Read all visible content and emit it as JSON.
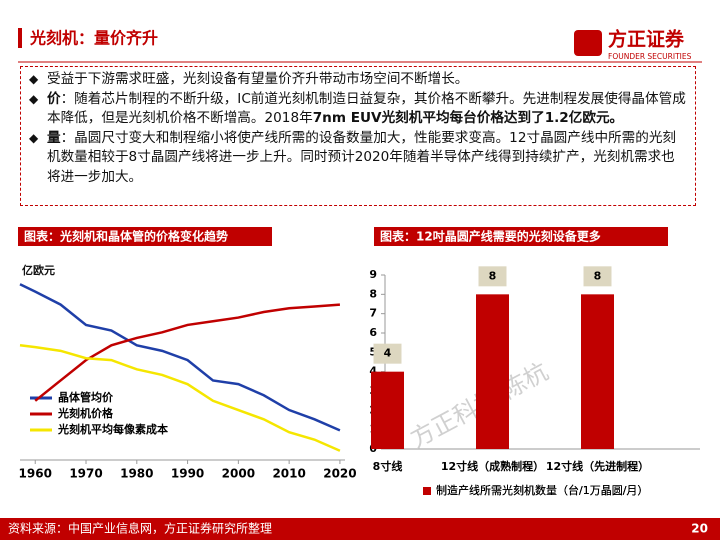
{
  "header": {
    "title": "光刻机：量价齐升",
    "logo": "方正证券",
    "logo_sub": "FOUNDER SECURITIES"
  },
  "bullets": [
    [
      {
        "text": "受益于下游需求旺盛，光刻设备有望量价齐升带动市场空间不断增长。",
        "bold": false
      }
    ],
    [
      {
        "text": "价",
        "bold": true
      },
      {
        "text": "：随着芯片制程的不断升级，IC前道光刻机制造日益复杂，其价格不断攀升。先进制程发展使得晶体管成本降低，但是光刻机价格不断增高。2018年",
        "bold": false
      },
      {
        "text": "7nm EUV光刻机平均每台价格达到了1.2亿欧元。",
        "bold": true
      }
    ],
    [
      {
        "text": "量",
        "bold": true
      },
      {
        "text": "：晶圆尺寸变大和制程缩小将使产线所需的设备数量加大，性能要求变高。12寸晶圆产线中所需的光刻机数量相较于8寸晶圆产线将进一步上升。同时预计2020年随着半导体产线得到持续扩产，光刻机需求也将进一步加大。",
        "bold": false
      }
    ]
  ],
  "chart_data": [
    {
      "type": "line",
      "title": "图表：光刻机和晶体管的价格变化趋势",
      "y_label": "亿欧元",
      "x": [
        1957,
        1960,
        1965,
        1970,
        1975,
        1980,
        1985,
        1990,
        1995,
        2000,
        2005,
        2010,
        2015,
        2020
      ],
      "xlim": [
        1957,
        2021
      ],
      "xticks": [
        1960,
        1970,
        1980,
        1990,
        2000,
        2010,
        2020
      ],
      "ylim": [
        0,
        100
      ],
      "series": [
        {
          "name": "晶体管均价",
          "color": "#1f3fa8",
          "values": [
            95,
            91,
            84,
            73,
            70,
            62,
            59,
            54,
            43,
            41,
            35,
            27,
            22,
            16
          ]
        },
        {
          "name": "光刻机价格",
          "color": "#c00000",
          "values": [
            null,
            32,
            43,
            54,
            62,
            66,
            69,
            73,
            75,
            77,
            80,
            82,
            83,
            84
          ]
        },
        {
          "name": "光刻机平均每像素成本",
          "color": "#f5e600",
          "values": [
            62,
            61,
            59,
            55,
            54,
            49,
            46,
            41,
            32,
            27,
            22,
            15,
            11,
            5
          ]
        }
      ]
    },
    {
      "type": "bar",
      "title": "图表：12吋晶圆产线需要的光刻设备更多",
      "categories": [
        "8寸线",
        "12寸线（成熟制程）",
        "12寸线（先进制程）"
      ],
      "series": [
        {
          "name": "制造产线所需光刻机数量（台/1万晶圆/月）",
          "color": "#c00000",
          "values": [
            4,
            8,
            8
          ]
        }
      ],
      "ylim": [
        0,
        9
      ],
      "yticks": [
        0,
        1,
        2,
        3,
        4,
        5,
        6,
        7,
        8,
        9
      ]
    }
  ],
  "watermark": "方正科技 陈杭",
  "footer": {
    "source": "资料来源：中国产业信息网，方正证券研究所整理",
    "page": "20"
  }
}
